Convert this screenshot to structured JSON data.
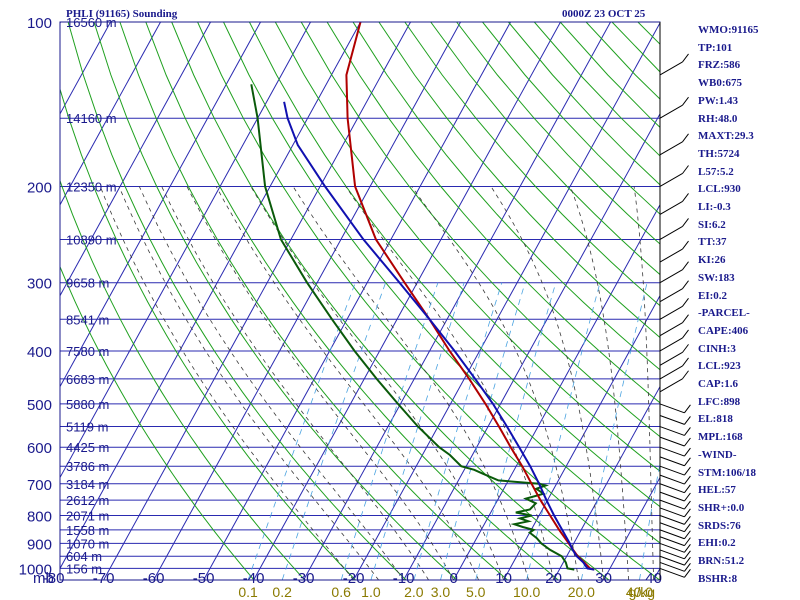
{
  "header": {
    "station": "PHLI (91165) Sounding",
    "time": "0000Z 23 OCT 25"
  },
  "indices": [
    "WMO:91165",
    "TP:101",
    "FRZ:586",
    "WB0:675",
    "PW:1.43",
    "RH:48.0",
    "MAXT:29.3",
    "TH:5724",
    "L57:5.2",
    "LCL:930",
    "LI:-0.3",
    "SI:6.2",
    "TT:37",
    "KI:26",
    "SW:183",
    "EI:0.2",
    "-PARCEL-",
    "CAPE:406",
    "CINH:3",
    "LCL:923",
    "CAP:1.6",
    "LFC:898",
    "EL:818",
    "MPL:168",
    "-WIND-",
    "STM:106/18",
    "HEL:57",
    "SHR+:0.0",
    "SRDS:76",
    "EHI:0.2",
    "BRN:51.2",
    "BSHR:8"
  ],
  "colors": {
    "frame": "#1a1a8c",
    "isotherm": "#2a2ab0",
    "dry_adiabat": "#1fa01f",
    "moist_adiabat": "#3a3a3a",
    "mixing_ratio": "#4aa3e0",
    "temperature": "#b00000",
    "parcel": "#1010b0",
    "dewpoint": "#0a5a0a",
    "mixing_label": "#8a7a00"
  },
  "chart_data": {
    "type": "skew-t",
    "pressure_label": "mb",
    "pressure_ticks": [
      100,
      200,
      300,
      400,
      500,
      600,
      700,
      800,
      900,
      1000
    ],
    "pressure_range": [
      100,
      1050
    ],
    "temperature_ticks": [
      -80,
      -70,
      -60,
      -50,
      -40,
      -30,
      -20,
      -10,
      0,
      10,
      20,
      30,
      40
    ],
    "mixing_ratio_labels": [
      "0.1",
      "0.2",
      "0.6",
      "1.0",
      "2.0",
      "3.0",
      "5.0",
      "10.0",
      "20.0",
      "40.0"
    ],
    "mixing_ratio_values": [
      0.1,
      0.2,
      0.6,
      1.0,
      2.0,
      3.0,
      5.0,
      10.0,
      20.0,
      40.0
    ],
    "mixing_ratio_unit": "g/kg",
    "heights": [
      {
        "p": 100,
        "label": "16560 m"
      },
      {
        "p": 150,
        "label": "14160 m"
      },
      {
        "p": 200,
        "label": "12350 m"
      },
      {
        "p": 250,
        "label": "10890 m"
      },
      {
        "p": 300,
        "label": "9658 m"
      },
      {
        "p": 350,
        "label": "8541 m"
      },
      {
        "p": 400,
        "label": "7580 m"
      },
      {
        "p": 450,
        "label": "6683 m"
      },
      {
        "p": 500,
        "label": "5880 m"
      },
      {
        "p": 550,
        "label": "5119 m"
      },
      {
        "p": 600,
        "label": "4425 m"
      },
      {
        "p": 650,
        "label": "3786 m"
      },
      {
        "p": 700,
        "label": "3184 m"
      },
      {
        "p": 750,
        "label": "2612 m"
      },
      {
        "p": 800,
        "label": "2071 m"
      },
      {
        "p": 850,
        "label": "1558 m"
      },
      {
        "p": 900,
        "label": "1070 m"
      },
      {
        "p": 950,
        "label": "604 m"
      },
      {
        "p": 1000,
        "label": "156 m"
      }
    ],
    "temperature_profile": [
      {
        "p": 1005,
        "t": 27.0
      },
      {
        "p": 1000,
        "t": 26.0
      },
      {
        "p": 975,
        "t": 24.2
      },
      {
        "p": 950,
        "t": 22.2
      },
      {
        "p": 925,
        "t": 20.6
      },
      {
        "p": 900,
        "t": 19.0
      },
      {
        "p": 850,
        "t": 15.6
      },
      {
        "p": 800,
        "t": 12.2
      },
      {
        "p": 750,
        "t": 8.6
      },
      {
        "p": 700,
        "t": 5.0
      },
      {
        "p": 650,
        "t": 1.2
      },
      {
        "p": 600,
        "t": -3.2
      },
      {
        "p": 550,
        "t": -7.8
      },
      {
        "p": 500,
        "t": -13.0
      },
      {
        "p": 450,
        "t": -19.0
      },
      {
        "p": 400,
        "t": -26.0
      },
      {
        "p": 350,
        "t": -33.5
      },
      {
        "p": 300,
        "t": -42.5
      },
      {
        "p": 250,
        "t": -53.0
      },
      {
        "p": 200,
        "t": -63.0
      },
      {
        "p": 150,
        "t": -72.0
      },
      {
        "p": 125,
        "t": -77.0
      },
      {
        "p": 100,
        "t": -80.0
      }
    ],
    "parcel_profile": [
      {
        "p": 1005,
        "t": 27.0
      },
      {
        "p": 1000,
        "t": 25.5
      },
      {
        "p": 975,
        "t": 24.0
      },
      {
        "p": 950,
        "t": 22.0
      },
      {
        "p": 925,
        "t": 20.5
      },
      {
        "p": 900,
        "t": 19.2
      },
      {
        "p": 850,
        "t": 16.2
      },
      {
        "p": 800,
        "t": 13.0
      },
      {
        "p": 750,
        "t": 9.8
      },
      {
        "p": 700,
        "t": 6.5
      },
      {
        "p": 650,
        "t": 2.8
      },
      {
        "p": 600,
        "t": -1.5
      },
      {
        "p": 550,
        "t": -6.2
      },
      {
        "p": 500,
        "t": -11.5
      },
      {
        "p": 450,
        "t": -17.8
      },
      {
        "p": 400,
        "t": -25.0
      },
      {
        "p": 350,
        "t": -33.5
      },
      {
        "p": 300,
        "t": -43.5
      },
      {
        "p": 250,
        "t": -55.5
      },
      {
        "p": 200,
        "t": -69.0
      },
      {
        "p": 168,
        "t": -79.0
      },
      {
        "p": 150,
        "t": -84.0
      },
      {
        "p": 140,
        "t": -86.5
      }
    ],
    "dewpoint_profile": [
      {
        "p": 1005,
        "t": 23.0
      },
      {
        "p": 1000,
        "t": 21.5
      },
      {
        "p": 975,
        "t": 20.5
      },
      {
        "p": 950,
        "t": 19.0
      },
      {
        "p": 925,
        "t": 16.0
      },
      {
        "p": 900,
        "t": 13.5
      },
      {
        "p": 880,
        "t": 12.0
      },
      {
        "p": 860,
        "t": 10.0
      },
      {
        "p": 850,
        "t": 10.5
      },
      {
        "p": 840,
        "t": 8.0
      },
      {
        "p": 830,
        "t": 6.0
      },
      {
        "p": 820,
        "t": 8.5
      },
      {
        "p": 810,
        "t": 6.5
      },
      {
        "p": 800,
        "t": 8.5
      },
      {
        "p": 790,
        "t": 5.0
      },
      {
        "p": 780,
        "t": 7.5
      },
      {
        "p": 760,
        "t": 8.0
      },
      {
        "p": 745,
        "t": 5.5
      },
      {
        "p": 730,
        "t": 8.5
      },
      {
        "p": 715,
        "t": 6.5
      },
      {
        "p": 705,
        "t": 8.0
      },
      {
        "p": 700,
        "t": 6.5
      },
      {
        "p": 690,
        "t": -2.0
      },
      {
        "p": 680,
        "t": -4.0
      },
      {
        "p": 670,
        "t": -6.0
      },
      {
        "p": 660,
        "t": -8.0
      },
      {
        "p": 650,
        "t": -11.0
      },
      {
        "p": 620,
        "t": -14.5
      },
      {
        "p": 600,
        "t": -17.5
      },
      {
        "p": 550,
        "t": -24.0
      },
      {
        "p": 500,
        "t": -30.5
      },
      {
        "p": 450,
        "t": -37.5
      },
      {
        "p": 400,
        "t": -45.0
      },
      {
        "p": 350,
        "t": -53.0
      },
      {
        "p": 300,
        "t": -62.0
      },
      {
        "p": 250,
        "t": -72.0
      },
      {
        "p": 200,
        "t": -81.0
      },
      {
        "p": 150,
        "t": -90.0
      },
      {
        "p": 130,
        "t": -95.0
      }
    ]
  }
}
